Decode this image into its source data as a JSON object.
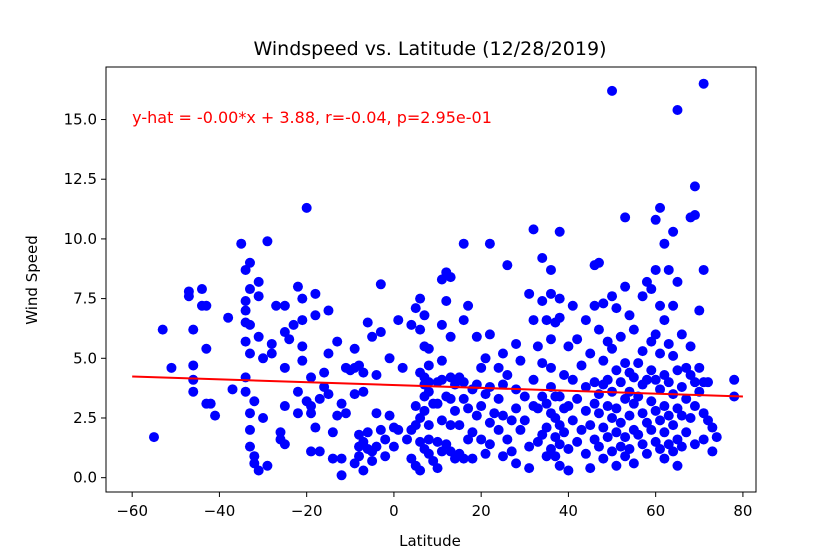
{
  "chart_data": {
    "type": "scatter",
    "title": "Windspeed vs. Latitude (12/28/2019)",
    "xlabel": "Latitude",
    "ylabel": "Wind Speed",
    "xlim": [
      -66,
      83
    ],
    "ylim": [
      -0.6,
      17.2
    ],
    "xticks": [
      -60,
      -40,
      -20,
      0,
      20,
      40,
      60,
      80
    ],
    "xtick_labels": [
      "−60",
      "−40",
      "−20",
      "0",
      "20",
      "40",
      "60",
      "80"
    ],
    "yticks": [
      0.0,
      2.5,
      5.0,
      7.5,
      10.0,
      12.5,
      15.0
    ],
    "ytick_labels": [
      "0.0",
      "2.5",
      "5.0",
      "7.5",
      "10.0",
      "12.5",
      "15.0"
    ],
    "grid": false,
    "point_color": "#0000ff",
    "regression": {
      "color": "#ff0000",
      "slope": -0.006,
      "intercept": 3.88,
      "x_range": [
        -60,
        80
      ],
      "annotation": "y-hat = -0.00*x + 3.88, r=-0.04, p=2.95e-01",
      "annotation_at": [
        -60,
        15.1
      ]
    },
    "points": [
      [
        -55,
        1.7
      ],
      [
        -53,
        6.2
      ],
      [
        -51,
        4.6
      ],
      [
        -47,
        7.8
      ],
      [
        -47,
        7.6
      ],
      [
        -46,
        6.2
      ],
      [
        -46,
        4.7
      ],
      [
        -46,
        3.6
      ],
      [
        -46,
        4.1
      ],
      [
        -44,
        7.9
      ],
      [
        -44,
        7.2
      ],
      [
        -43,
        7.2
      ],
      [
        -43,
        5.4
      ],
      [
        -43,
        3.1
      ],
      [
        -42,
        3.1
      ],
      [
        -41,
        2.6
      ],
      [
        -38,
        6.7
      ],
      [
        -37,
        3.7
      ],
      [
        -35,
        9.8
      ],
      [
        -34,
        8.7
      ],
      [
        -34,
        7.4
      ],
      [
        -34,
        7.0
      ],
      [
        -34,
        6.5
      ],
      [
        -34,
        5.7
      ],
      [
        -34,
        4.2
      ],
      [
        -34,
        3.6
      ],
      [
        -33,
        9.0
      ],
      [
        -33,
        7.9
      ],
      [
        -33,
        6.4
      ],
      [
        -33,
        5.2
      ],
      [
        -33,
        2.7
      ],
      [
        -33,
        2.0
      ],
      [
        -33,
        1.3
      ],
      [
        -32,
        0.9
      ],
      [
        -32,
        0.6
      ],
      [
        -32,
        3.2
      ],
      [
        -31,
        8.2
      ],
      [
        -31,
        7.6
      ],
      [
        -31,
        5.9
      ],
      [
        -31,
        0.3
      ],
      [
        -30,
        5.0
      ],
      [
        -30,
        2.5
      ],
      [
        -29,
        9.9
      ],
      [
        -29,
        0.5
      ],
      [
        -28,
        5.6
      ],
      [
        -28,
        5.2
      ],
      [
        -27,
        7.2
      ],
      [
        -26,
        1.6
      ],
      [
        -26,
        1.9
      ],
      [
        -25,
        7.2
      ],
      [
        -25,
        6.1
      ],
      [
        -25,
        4.6
      ],
      [
        -25,
        3.0
      ],
      [
        -25,
        1.4
      ],
      [
        -24,
        5.8
      ],
      [
        -23,
        6.4
      ],
      [
        -22,
        8.0
      ],
      [
        -22,
        3.6
      ],
      [
        -22,
        2.7
      ],
      [
        -21,
        7.5
      ],
      [
        -21,
        6.6
      ],
      [
        -21,
        5.5
      ],
      [
        -21,
        4.9
      ],
      [
        -20,
        11.3
      ],
      [
        -20,
        3.2
      ],
      [
        -19,
        4.2
      ],
      [
        -19,
        3.0
      ],
      [
        -19,
        2.7
      ],
      [
        -19,
        1.1
      ],
      [
        -18,
        7.7
      ],
      [
        -18,
        6.8
      ],
      [
        -18,
        2.1
      ],
      [
        -17,
        1.1
      ],
      [
        -17,
        3.3
      ],
      [
        -16,
        4.4
      ],
      [
        -16,
        3.8
      ],
      [
        -15,
        7.0
      ],
      [
        -15,
        5.2
      ],
      [
        -15,
        3.5
      ],
      [
        -14,
        1.9
      ],
      [
        -14,
        0.8
      ],
      [
        -13,
        5.7
      ],
      [
        -13,
        2.6
      ],
      [
        -12,
        0.1
      ],
      [
        -12,
        0.8
      ],
      [
        -12,
        3.1
      ],
      [
        -11,
        4.6
      ],
      [
        -11,
        2.7
      ],
      [
        -10,
        4.5
      ],
      [
        -9,
        5.4
      ],
      [
        -9,
        4.6
      ],
      [
        -9,
        3.5
      ],
      [
        -9,
        0.6
      ],
      [
        -8,
        4.7
      ],
      [
        -8,
        1.8
      ],
      [
        -8,
        1.3
      ],
      [
        -8,
        0.9
      ],
      [
        -7,
        4.4
      ],
      [
        -7,
        3.6
      ],
      [
        -7,
        1.5
      ],
      [
        -7,
        0.3
      ],
      [
        -6,
        6.5
      ],
      [
        -6,
        1.9
      ],
      [
        -6,
        1.2
      ],
      [
        -5,
        5.9
      ],
      [
        -5,
        1.1
      ],
      [
        -5,
        0.7
      ],
      [
        -4,
        4.3
      ],
      [
        -4,
        2.7
      ],
      [
        -4,
        1.3
      ],
      [
        -3,
        8.1
      ],
      [
        -3,
        6.1
      ],
      [
        -3,
        2.0
      ],
      [
        -2,
        1.6
      ],
      [
        -2,
        0.9
      ],
      [
        -1,
        5.0
      ],
      [
        -1,
        2.6
      ],
      [
        0,
        1.3
      ],
      [
        0,
        2.1
      ],
      [
        1,
        6.6
      ],
      [
        1,
        2.0
      ],
      [
        2,
        4.6
      ],
      [
        3,
        1.6
      ],
      [
        4,
        6.4
      ],
      [
        4,
        0.8
      ],
      [
        4,
        2.0
      ],
      [
        5,
        7.1
      ],
      [
        5,
        3.0
      ],
      [
        5,
        2.2
      ],
      [
        5,
        0.5
      ],
      [
        6,
        7.5
      ],
      [
        6,
        6.2
      ],
      [
        6,
        4.4
      ],
      [
        6,
        2.5
      ],
      [
        6,
        1.5
      ],
      [
        6,
        0.3
      ],
      [
        7,
        6.8
      ],
      [
        7,
        5.5
      ],
      [
        7,
        4.2
      ],
      [
        7,
        3.9
      ],
      [
        7,
        3.4
      ],
      [
        7,
        2.8
      ],
      [
        7,
        1.2
      ],
      [
        8,
        5.4
      ],
      [
        8,
        4.7
      ],
      [
        8,
        4.0
      ],
      [
        8,
        3.6
      ],
      [
        8,
        2.2
      ],
      [
        8,
        1.6
      ],
      [
        8,
        1.0
      ],
      [
        9,
        3.1
      ],
      [
        9,
        0.7
      ],
      [
        10,
        4.0
      ],
      [
        10,
        3.1
      ],
      [
        10,
        1.5
      ],
      [
        10,
        0.4
      ],
      [
        11,
        8.3
      ],
      [
        11,
        6.4
      ],
      [
        11,
        4.9
      ],
      [
        11,
        4.1
      ],
      [
        11,
        2.4
      ],
      [
        11,
        1.1
      ],
      [
        12,
        8.6
      ],
      [
        12,
        7.4
      ],
      [
        12,
        3.4
      ],
      [
        12,
        1.4
      ],
      [
        13,
        8.4
      ],
      [
        13,
        5.9
      ],
      [
        13,
        4.2
      ],
      [
        13,
        3.3
      ],
      [
        13,
        2.2
      ],
      [
        13,
        1.1
      ],
      [
        14,
        3.9
      ],
      [
        14,
        2.8
      ],
      [
        14,
        0.8
      ],
      [
        15,
        4.2
      ],
      [
        15,
        2.2
      ],
      [
        15,
        1.0
      ],
      [
        16,
        9.8
      ],
      [
        16,
        6.6
      ],
      [
        16,
        4.0
      ],
      [
        16,
        3.3
      ],
      [
        16,
        0.8
      ],
      [
        17,
        7.2
      ],
      [
        17,
        2.9
      ],
      [
        17,
        1.6
      ],
      [
        18,
        3.7
      ],
      [
        18,
        1.9
      ],
      [
        18,
        0.8
      ],
      [
        19,
        5.9
      ],
      [
        19,
        3.9
      ],
      [
        19,
        2.6
      ],
      [
        20,
        4.6
      ],
      [
        20,
        3.0
      ],
      [
        20,
        1.6
      ],
      [
        21,
        5.0
      ],
      [
        21,
        3.5
      ],
      [
        21,
        1.0
      ],
      [
        22,
        9.8
      ],
      [
        22,
        6.0
      ],
      [
        22,
        3.8
      ],
      [
        22,
        2.3
      ],
      [
        22,
        1.4
      ],
      [
        23,
        2.7
      ],
      [
        24,
        4.6
      ],
      [
        24,
        3.3
      ],
      [
        24,
        2.0
      ],
      [
        25,
        5.2
      ],
      [
        25,
        3.9
      ],
      [
        25,
        2.6
      ],
      [
        25,
        0.9
      ],
      [
        26,
        8.9
      ],
      [
        26,
        4.3
      ],
      [
        26,
        1.6
      ],
      [
        27,
        2.4
      ],
      [
        27,
        1.1
      ],
      [
        28,
        5.6
      ],
      [
        28,
        3.7
      ],
      [
        28,
        2.9
      ],
      [
        28,
        0.6
      ],
      [
        29,
        4.9
      ],
      [
        29,
        2.0
      ],
      [
        30,
        3.4
      ],
      [
        30,
        2.4
      ],
      [
        31,
        7.7
      ],
      [
        31,
        1.3
      ],
      [
        31,
        0.4
      ],
      [
        32,
        10.4
      ],
      [
        32,
        6.6
      ],
      [
        32,
        4.1
      ],
      [
        32,
        3.0
      ],
      [
        33,
        5.5
      ],
      [
        33,
        2.9
      ],
      [
        33,
        1.5
      ],
      [
        34,
        9.2
      ],
      [
        34,
        7.4
      ],
      [
        34,
        4.8
      ],
      [
        34,
        3.4
      ],
      [
        34,
        1.8
      ],
      [
        35,
        6.6
      ],
      [
        35,
        3.1
      ],
      [
        35,
        2.1
      ],
      [
        35,
        0.9
      ],
      [
        36,
        8.7
      ],
      [
        36,
        7.7
      ],
      [
        36,
        5.8
      ],
      [
        36,
        4.6
      ],
      [
        36,
        3.8
      ],
      [
        36,
        2.7
      ],
      [
        36,
        1.2
      ],
      [
        37,
        6.5
      ],
      [
        37,
        3.4
      ],
      [
        37,
        2.5
      ],
      [
        37,
        1.7
      ],
      [
        37,
        0.9
      ],
      [
        38,
        10.3
      ],
      [
        38,
        7.5
      ],
      [
        38,
        6.7
      ],
      [
        38,
        3.4
      ],
      [
        38,
        2.2
      ],
      [
        38,
        1.4
      ],
      [
        38,
        0.5
      ],
      [
        39,
        4.3
      ],
      [
        39,
        2.9
      ],
      [
        39,
        1.9
      ],
      [
        40,
        5.5
      ],
      [
        40,
        3.0
      ],
      [
        40,
        1.2
      ],
      [
        40,
        0.3
      ],
      [
        41,
        7.2
      ],
      [
        41,
        4.1
      ],
      [
        41,
        2.4
      ],
      [
        42,
        5.8
      ],
      [
        42,
        3.3
      ],
      [
        42,
        1.5
      ],
      [
        43,
        4.7
      ],
      [
        43,
        2.0
      ],
      [
        44,
        6.6
      ],
      [
        44,
        3.8
      ],
      [
        44,
        2.8
      ],
      [
        44,
        1.0
      ],
      [
        45,
        5.2
      ],
      [
        45,
        2.2
      ],
      [
        45,
        0.4
      ],
      [
        46,
        8.9
      ],
      [
        46,
        7.2
      ],
      [
        46,
        4.0
      ],
      [
        46,
        3.1
      ],
      [
        46,
        1.6
      ],
      [
        47,
        9.0
      ],
      [
        47,
        6.2
      ],
      [
        47,
        3.5
      ],
      [
        47,
        2.7
      ],
      [
        47,
        1.3
      ],
      [
        48,
        7.3
      ],
      [
        48,
        4.9
      ],
      [
        48,
        3.9
      ],
      [
        48,
        2.1
      ],
      [
        48,
        0.8
      ],
      [
        49,
        5.7
      ],
      [
        49,
        4.1
      ],
      [
        49,
        3.0
      ],
      [
        49,
        1.7
      ],
      [
        50,
        16.2
      ],
      [
        50,
        7.6
      ],
      [
        50,
        5.4
      ],
      [
        50,
        3.6
      ],
      [
        50,
        2.5
      ],
      [
        50,
        1.1
      ],
      [
        51,
        7.1
      ],
      [
        51,
        4.5
      ],
      [
        51,
        2.9
      ],
      [
        51,
        1.9
      ],
      [
        51,
        0.5
      ],
      [
        52,
        5.9
      ],
      [
        52,
        4.0
      ],
      [
        52,
        2.3
      ],
      [
        52,
        1.3
      ],
      [
        53,
        10.9
      ],
      [
        53,
        8.0
      ],
      [
        53,
        4.8
      ],
      [
        53,
        3.3
      ],
      [
        53,
        1.7
      ],
      [
        53,
        0.9
      ],
      [
        54,
        6.8
      ],
      [
        54,
        4.4
      ],
      [
        54,
        3.6
      ],
      [
        54,
        2.6
      ],
      [
        54,
        1.2
      ],
      [
        55,
        6.2
      ],
      [
        55,
        4.2
      ],
      [
        55,
        3.1
      ],
      [
        55,
        2.0
      ],
      [
        55,
        0.6
      ],
      [
        56,
        4.8
      ],
      [
        56,
        3.4
      ],
      [
        56,
        1.8
      ],
      [
        57,
        7.6
      ],
      [
        57,
        5.3
      ],
      [
        57,
        3.9
      ],
      [
        57,
        2.7
      ],
      [
        57,
        1.4
      ],
      [
        58,
        8.2
      ],
      [
        58,
        4.1
      ],
      [
        58,
        2.3
      ],
      [
        58,
        1.0
      ],
      [
        59,
        7.9
      ],
      [
        59,
        5.7
      ],
      [
        59,
        4.5
      ],
      [
        59,
        3.2
      ],
      [
        59,
        2.0
      ],
      [
        60,
        10.8
      ],
      [
        60,
        8.7
      ],
      [
        60,
        6.0
      ],
      [
        60,
        4.1
      ],
      [
        60,
        2.8
      ],
      [
        60,
        1.5
      ],
      [
        61,
        11.3
      ],
      [
        61,
        7.2
      ],
      [
        61,
        5.2
      ],
      [
        61,
        3.7
      ],
      [
        61,
        2.4
      ],
      [
        61,
        1.2
      ],
      [
        62,
        9.8
      ],
      [
        62,
        6.6
      ],
      [
        62,
        4.3
      ],
      [
        62,
        3.0
      ],
      [
        62,
        1.9
      ],
      [
        62,
        0.8
      ],
      [
        63,
        8.7
      ],
      [
        63,
        5.6
      ],
      [
        63,
        4.0
      ],
      [
        63,
        2.6
      ],
      [
        63,
        1.4
      ],
      [
        64,
        10.3
      ],
      [
        64,
        7.2
      ],
      [
        64,
        5.1
      ],
      [
        64,
        3.5
      ],
      [
        64,
        2.2
      ],
      [
        64,
        1.1
      ],
      [
        65,
        15.4
      ],
      [
        65,
        8.2
      ],
      [
        65,
        4.5
      ],
      [
        65,
        2.9
      ],
      [
        65,
        1.6
      ],
      [
        65,
        0.5
      ],
      [
        66,
        6.0
      ],
      [
        66,
        3.8
      ],
      [
        66,
        2.6
      ],
      [
        66,
        1.3
      ],
      [
        67,
        4.6
      ],
      [
        67,
        3.3
      ],
      [
        67,
        1.9
      ],
      [
        68,
        10.9
      ],
      [
        68,
        5.5
      ],
      [
        68,
        4.3
      ],
      [
        68,
        2.5
      ],
      [
        69,
        12.2
      ],
      [
        69,
        11.0
      ],
      [
        69,
        4.0
      ],
      [
        69,
        3.0
      ],
      [
        69,
        1.4
      ],
      [
        70,
        7.0
      ],
      [
        70,
        4.6
      ],
      [
        70,
        3.6
      ],
      [
        71,
        16.5
      ],
      [
        71,
        8.7
      ],
      [
        71,
        4.0
      ],
      [
        71,
        2.7
      ],
      [
        71,
        1.6
      ],
      [
        72,
        4.0
      ],
      [
        72,
        2.4
      ],
      [
        73,
        1.1
      ],
      [
        73,
        2.1
      ],
      [
        74,
        1.7
      ],
      [
        78,
        3.4
      ],
      [
        78,
        4.1
      ]
    ]
  }
}
